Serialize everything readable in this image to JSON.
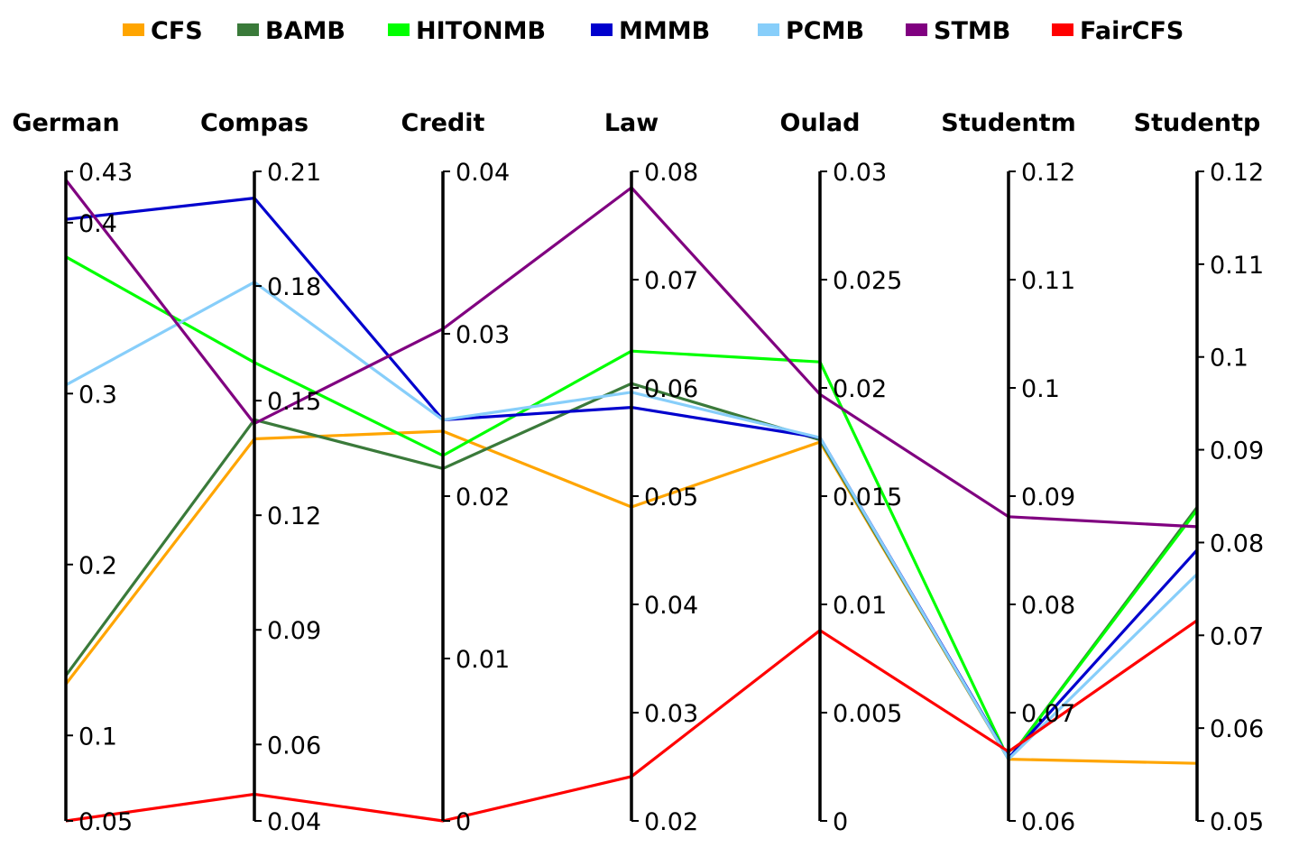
{
  "chart_data": {
    "type": "parallel-coordinates",
    "legend_position": "top-center",
    "axes": [
      {
        "name": "German",
        "min": 0.05,
        "max": 0.43,
        "ticks": [
          0.05,
          0.1,
          0.2,
          0.3,
          0.4,
          0.43
        ],
        "tick_labels": [
          "0.05",
          "0.1",
          "0.2",
          "0.3",
          "0.4",
          "0.43"
        ]
      },
      {
        "name": "Compas",
        "min": 0.04,
        "max": 0.21,
        "ticks": [
          0.04,
          0.06,
          0.09,
          0.12,
          0.15,
          0.18,
          0.21
        ],
        "tick_labels": [
          "0.04",
          "0.06",
          "0.09",
          "0.12",
          "0.15",
          "0.18",
          "0.21"
        ]
      },
      {
        "name": "Credit",
        "min": 0,
        "max": 0.04,
        "ticks": [
          0,
          0.01,
          0.02,
          0.03,
          0.04
        ],
        "tick_labels": [
          "0",
          "0.01",
          "0.02",
          "0.03",
          "0.04"
        ]
      },
      {
        "name": "Law",
        "min": 0.02,
        "max": 0.08,
        "ticks": [
          0.02,
          0.03,
          0.04,
          0.05,
          0.06,
          0.07,
          0.08
        ],
        "tick_labels": [
          "0.02",
          "0.03",
          "0.04",
          "0.05",
          "0.06",
          "0.07",
          "0.08"
        ]
      },
      {
        "name": "Oulad",
        "min": 0,
        "max": 0.03,
        "ticks": [
          0,
          0.005,
          0.01,
          0.015,
          0.02,
          0.025,
          0.03
        ],
        "tick_labels": [
          "0",
          "0.005",
          "0.01",
          "0.015",
          "0.02",
          "0.025",
          "0.03"
        ]
      },
      {
        "name": "Studentm",
        "min": 0.06,
        "max": 0.12,
        "ticks": [
          0.06,
          0.07,
          0.08,
          0.09,
          0.1,
          0.11,
          0.12
        ],
        "tick_labels": [
          "0.06",
          "0.07",
          "0.08",
          "0.09",
          "0.1",
          "0.11",
          "0.12"
        ]
      },
      {
        "name": "Studentp",
        "min": 0.05,
        "max": 0.12,
        "ticks": [
          0.05,
          0.06,
          0.07,
          0.08,
          0.09,
          0.1,
          0.11,
          0.12
        ],
        "tick_labels": [
          "0.05",
          "0.06",
          "0.07",
          "0.08",
          "0.09",
          "0.1",
          "0.11",
          "0.12"
        ]
      }
    ],
    "series": [
      {
        "name": "CFS",
        "color": "#FFA500",
        "values": [
          0.13,
          0.14,
          0.024,
          0.049,
          0.0175,
          0.0657,
          0.0562
        ]
      },
      {
        "name": "BAMB",
        "color": "#3A7A3A",
        "values": [
          0.135,
          0.145,
          0.0217,
          0.0604,
          0.0176,
          0.0657,
          0.0838
        ]
      },
      {
        "name": "HITONMB",
        "color": "#00FF00",
        "values": [
          0.38,
          0.16,
          0.0225,
          0.0634,
          0.0212,
          0.0657,
          0.0835
        ]
      },
      {
        "name": "MMMB",
        "color": "#0000CD",
        "values": [
          0.402,
          0.203,
          0.0247,
          0.0582,
          0.0177,
          0.0658,
          0.0792
        ]
      },
      {
        "name": "PCMB",
        "color": "#87CEFA",
        "values": [
          0.305,
          0.181,
          0.0247,
          0.0596,
          0.0177,
          0.0657,
          0.0766
        ]
      },
      {
        "name": "STMB",
        "color": "#800080",
        "values": [
          0.425,
          0.144,
          0.0303,
          0.0785,
          0.0197,
          0.0881,
          0.0817
        ]
      },
      {
        "name": "FairCFS",
        "color": "#FF0000",
        "values": [
          0.05,
          0.047,
          0,
          0.0241,
          0.0088,
          0.0664,
          0.0716
        ]
      }
    ]
  }
}
